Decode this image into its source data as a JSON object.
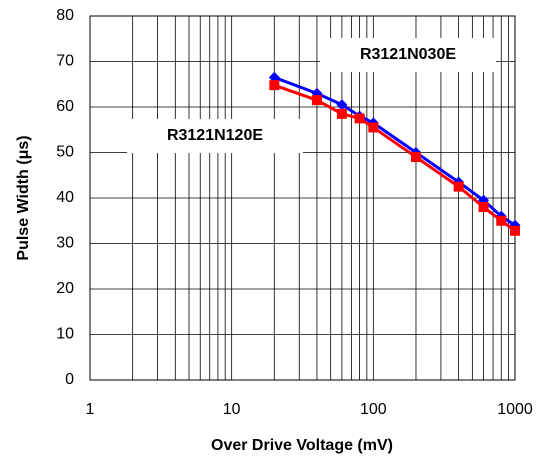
{
  "chart_data": {
    "type": "line",
    "x_label": "Over Drive Voltage (mV)",
    "y_label": "Pulse Width (μs)",
    "x": [
      20,
      40,
      60,
      80,
      100,
      200,
      400,
      600,
      800,
      1000
    ],
    "series": [
      {
        "name": "R3121N030E",
        "color": "#0000ff",
        "marker": "diamond",
        "values": [
          66.5,
          63,
          60.5,
          58,
          56.5,
          50,
          43.5,
          39.5,
          36,
          34
        ]
      },
      {
        "name": "R3121N120E",
        "color": "#ff0000",
        "marker": "square",
        "values": [
          64.8,
          61.5,
          58.5,
          57.5,
          55.5,
          49,
          42.5,
          38,
          35,
          32.8
        ]
      }
    ],
    "xlim": [
      1,
      1000
    ],
    "xticks": [
      1,
      10,
      100,
      1000
    ],
    "x_log": true,
    "ylim": [
      0,
      80
    ],
    "yticks": [
      0,
      10,
      20,
      30,
      40,
      50,
      60,
      70,
      80
    ],
    "grid": true
  }
}
